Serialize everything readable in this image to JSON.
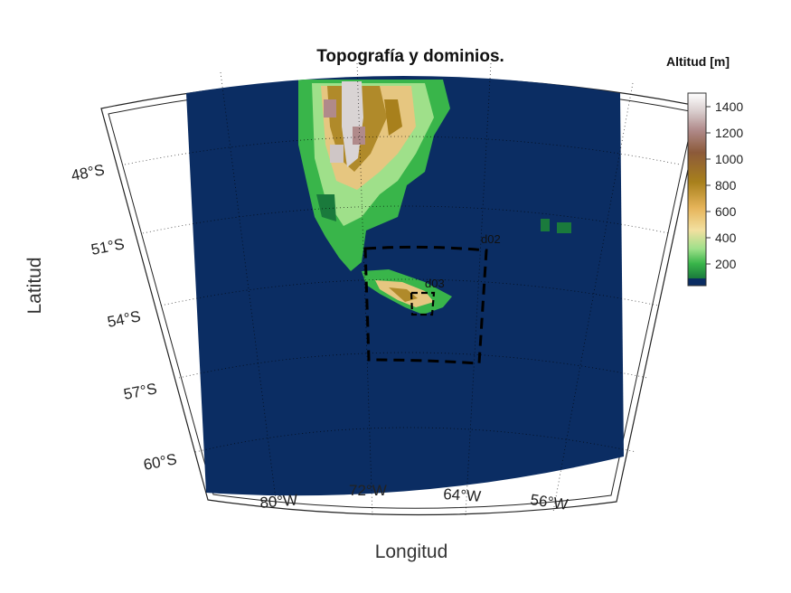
{
  "title": "Topografía y dominios.",
  "colorbar": {
    "title": "Altitud [m]",
    "ticks": [
      "1400",
      "1200",
      "1000",
      "800",
      "600",
      "400",
      "200"
    ],
    "colors": [
      "#0b2d63",
      "#1a7a3c",
      "#39b54a",
      "#9fe08a",
      "#f2e0a0",
      "#e6b45a",
      "#a8801c",
      "#8c6a3a",
      "#a06a6a",
      "#c4a4a4",
      "#ececec",
      "#ffffff"
    ]
  },
  "xaxis": {
    "label": "Longitud",
    "ticks": [
      "80°W",
      "72°W",
      "64°W",
      "56°W"
    ]
  },
  "yaxis": {
    "label": "Latitud",
    "ticks": [
      "48°S",
      "51°S",
      "54°S",
      "57°S",
      "60°S"
    ]
  },
  "domains": [
    {
      "name": "d02"
    },
    {
      "name": "d03"
    }
  ],
  "colors": {
    "ocean": "#0b2d63",
    "lowland": "#39b54a",
    "mid": "#d9c07a",
    "high": "#8c6a3a",
    "peak": "#ffffff"
  },
  "map_data": {
    "projection": "conic",
    "lat_range": [
      "46°S",
      "62°S"
    ],
    "lon_range": [
      "86°W",
      "50°W"
    ],
    "features": [
      "Patagonia",
      "Tierra del Fuego",
      "Islas Malvinas"
    ]
  }
}
